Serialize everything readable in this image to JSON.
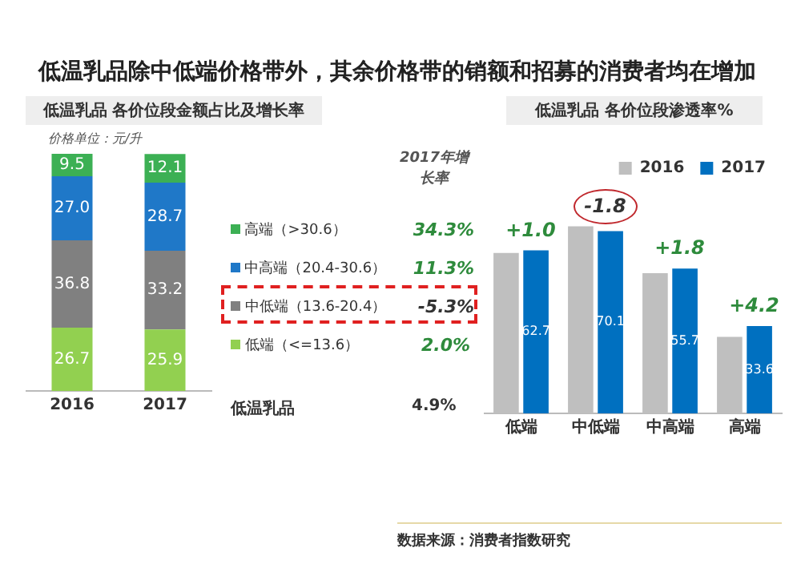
{
  "chart_data": [
    {
      "type": "other",
      "title": "低温乳品除中低端价格带外，其余价格带的销额和招募的消费者均在增加",
      "annotations": [
        "数据来源：消费者指数研究"
      ]
    },
    {
      "type": "bar",
      "subtitle": "低温乳品 各价位段金额占比及增长率",
      "categories": [
        "2016",
        "2017"
      ],
      "stacked": true,
      "ylim": [
        0,
        100
      ],
      "tick_labels": "x",
      "grid": false,
      "legend": "right",
      "annotations": [
        "价格单位：元/升",
        "2017年增长率",
        "34.3%",
        "11.3%",
        "-5.3%",
        "2.0%",
        "低温乳品",
        "4.9%"
      ],
      "series": [
        {
          "name": "低端（<=13.6）",
          "color": "#92d050",
          "values": [
            26.7,
            25.9
          ],
          "value_labels": [
            "26.7",
            "25.9"
          ]
        },
        {
          "name": "中低端（13.6-20.4）",
          "color": "#808080",
          "values": [
            36.8,
            33.2
          ],
          "value_labels": [
            "36.8",
            "33.2"
          ]
        },
        {
          "name": "中高端（20.4-30.6）",
          "color": "#1f78c8",
          "values": [
            27.0,
            28.7
          ],
          "value_labels": [
            "27.0",
            "28.7"
          ]
        },
        {
          "name": "高端（>30.6）",
          "color": "#3cb054",
          "values": [
            9.5,
            12.1
          ],
          "value_labels": [
            "9.5",
            "12.1"
          ]
        }
      ]
    },
    {
      "type": "bar",
      "subtitle": "低温乳品 各价位段渗透率%",
      "categories": [
        "低端",
        "中低端",
        "中高端",
        "高端"
      ],
      "ylim": [
        0,
        85
      ],
      "tick_labels": "x",
      "grid": false,
      "legend": "top right",
      "annotations": [
        {
          "text": "+1.0",
          "x": "低端",
          "y": 62.7
        },
        {
          "text": "-1.8",
          "x": "中低端",
          "y": 71.9
        },
        {
          "text": "+1.8",
          "x": "中高端",
          "y": 55.7
        },
        {
          "text": "+4.2",
          "x": "高端",
          "y": 33.6
        }
      ],
      "series": [
        {
          "name": "2016",
          "color": "#bfbfbf",
          "values": [
            61.7,
            71.9,
            53.9,
            29.4
          ]
        },
        {
          "name": "2017",
          "color": "#0070c0",
          "values": [
            62.7,
            70.1,
            55.7,
            33.6
          ],
          "value_labels": [
            "62.7",
            "70.1",
            "55.7",
            "33.6"
          ]
        }
      ]
    }
  ]
}
